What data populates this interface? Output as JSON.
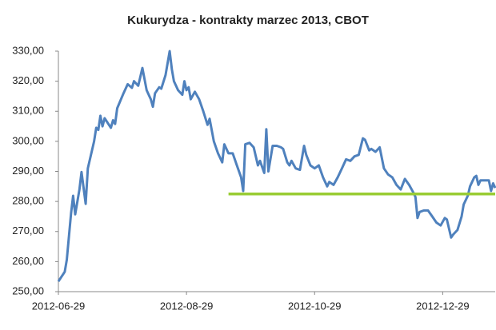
{
  "chart_data": {
    "type": "line",
    "title": "Kukurydza - kontrakty marzec 2013, CBOT",
    "x": [
      "2012-06-29",
      "2012-07-02",
      "2012-07-03",
      "2012-07-05",
      "2012-07-06",
      "2012-07-07",
      "2012-07-09",
      "2012-07-10",
      "2012-07-12",
      "2012-07-13",
      "2012-07-16",
      "2012-07-17",
      "2012-07-18",
      "2012-07-19",
      "2012-07-20",
      "2012-07-21",
      "2012-07-24",
      "2012-07-25",
      "2012-07-26",
      "2012-07-27",
      "2012-07-30",
      "2012-08-01",
      "2012-08-03",
      "2012-08-04",
      "2012-08-06",
      "2012-08-08",
      "2012-08-10",
      "2012-08-12",
      "2012-08-13",
      "2012-08-14",
      "2012-08-16",
      "2012-08-17",
      "2012-08-19",
      "2012-08-21",
      "2012-08-22",
      "2012-08-23",
      "2012-08-25",
      "2012-08-27",
      "2012-08-28",
      "2012-08-29",
      "2012-08-30",
      "2012-08-31",
      "2012-09-02",
      "2012-09-04",
      "2012-09-06",
      "2012-09-08",
      "2012-09-09",
      "2012-09-11",
      "2012-09-13",
      "2012-09-15",
      "2012-09-16",
      "2012-09-18",
      "2012-09-20",
      "2012-09-22",
      "2012-09-24",
      "2012-09-25",
      "2012-09-26",
      "2012-09-28",
      "2012-09-30",
      "2012-10-02",
      "2012-10-03",
      "2012-10-05",
      "2012-10-06",
      "2012-10-07",
      "2012-10-09",
      "2012-10-11",
      "2012-10-13",
      "2012-10-14",
      "2012-10-16",
      "2012-10-17",
      "2012-10-18",
      "2012-10-20",
      "2012-10-22",
      "2012-10-24",
      "2012-10-25",
      "2012-10-27",
      "2012-10-29",
      "2012-10-31",
      "2012-11-02",
      "2012-11-04",
      "2012-11-05",
      "2012-11-07",
      "2012-11-09",
      "2012-11-11",
      "2012-11-13",
      "2012-11-15",
      "2012-11-17",
      "2012-11-19",
      "2012-11-21",
      "2012-11-22",
      "2012-11-24",
      "2012-11-25",
      "2012-11-27",
      "2012-11-29",
      "2012-12-01",
      "2012-12-03",
      "2012-12-05",
      "2012-12-07",
      "2012-12-09",
      "2012-12-11",
      "2012-12-13",
      "2012-12-15",
      "2012-12-16",
      "2012-12-17",
      "2012-12-18",
      "2012-12-20",
      "2012-12-22",
      "2012-12-24",
      "2012-12-26",
      "2012-12-28",
      "2012-12-30",
      "2012-12-31",
      "2013-01-02",
      "2013-01-03",
      "2013-01-05",
      "2013-01-07",
      "2013-01-08",
      "2013-01-10",
      "2013-01-11",
      "2013-01-13",
      "2013-01-14",
      "2013-01-15",
      "2013-01-16",
      "2013-01-18",
      "2013-01-20",
      "2013-01-21",
      "2013-01-22",
      "2013-01-23"
    ],
    "values": [
      253.4,
      256.6,
      260.6,
      276,
      281.9,
      275.7,
      284,
      289.8,
      279.2,
      291,
      300,
      304.5,
      303.8,
      308.5,
      305,
      307.7,
      304.5,
      307,
      305.8,
      311,
      316,
      319,
      317.8,
      320,
      318.5,
      324.4,
      317,
      314,
      311.5,
      316,
      318,
      317.5,
      322,
      330,
      324,
      320,
      317,
      315.5,
      320,
      317,
      318,
      314,
      316.5,
      314,
      310,
      305.5,
      307.5,
      300,
      296,
      293,
      299,
      296,
      296,
      292,
      288,
      283.5,
      299,
      299.5,
      298,
      292,
      293.5,
      289.5,
      304,
      290,
      298.5,
      298.5,
      298,
      297.5,
      293,
      292,
      293.5,
      291,
      290.5,
      298.5,
      295.5,
      292,
      291,
      292,
      288,
      285,
      286.5,
      285.5,
      288,
      291,
      294,
      293.5,
      295,
      295.5,
      301,
      300.5,
      297,
      297.5,
      296.5,
      298,
      291,
      289,
      288,
      285.5,
      284,
      287.5,
      285.5,
      283,
      281.5,
      274.5,
      276.5,
      277,
      277,
      275,
      273,
      272,
      274.5,
      274,
      268,
      269,
      270.5,
      275,
      279,
      282,
      285,
      288,
      288.5,
      285.5,
      287,
      287,
      287,
      283.5,
      286,
      284.5
    ],
    "color": "#4f81bd",
    "reference_line": {
      "value": 282.5,
      "x_start": "2012-09-18",
      "color": "#99cc33"
    },
    "xlim": [
      "2012-06-29",
      "2013-01-23"
    ],
    "xticks": [
      "2012-06-29",
      "2012-08-29",
      "2012-10-29",
      "2012-12-29"
    ],
    "ylim": [
      250,
      330
    ],
    "yticks": [
      {
        "value": 250,
        "label": "250,00"
      },
      {
        "value": 260,
        "label": "260,00"
      },
      {
        "value": 270,
        "label": "270,00"
      },
      {
        "value": 280,
        "label": "280,00"
      },
      {
        "value": 290,
        "label": "290,00"
      },
      {
        "value": 300,
        "label": "300,00"
      },
      {
        "value": 310,
        "label": "310,00"
      },
      {
        "value": 320,
        "label": "320,00"
      },
      {
        "value": 330,
        "label": "330,00"
      }
    ],
    "grid": false
  }
}
